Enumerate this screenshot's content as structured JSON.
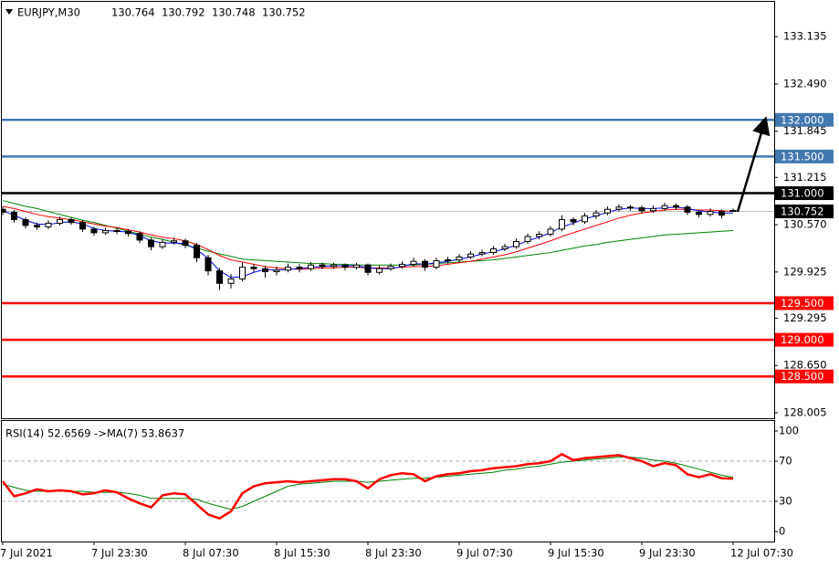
{
  "header": {
    "symbol": "EURJPY,M30",
    "ohlc": [
      130.764,
      130.792,
      130.748,
      130.752
    ]
  },
  "chart_data": [
    {
      "type": "candlestick",
      "categories": [
        "7 Jul 2021",
        null,
        null,
        null,
        null,
        null,
        null,
        null,
        "7 Jul 23:30",
        null,
        null,
        null,
        null,
        null,
        null,
        null,
        "8 Jul 07:30",
        null,
        null,
        null,
        null,
        null,
        null,
        null,
        "8 Jul 15:30",
        null,
        null,
        null,
        null,
        null,
        null,
        null,
        "8 Jul 23:30",
        null,
        null,
        null,
        null,
        null,
        null,
        null,
        "9 Jul 07:30",
        null,
        null,
        null,
        null,
        null,
        null,
        null,
        "9 Jul 15:30",
        null,
        null,
        null,
        null,
        null,
        null,
        null,
        "9 Jul 23:30",
        null,
        null,
        null,
        null,
        null,
        null,
        null,
        "12 Jul 07:30"
      ],
      "ohlc": [
        [
          130.78,
          130.82,
          130.7,
          130.74
        ],
        [
          130.74,
          130.77,
          130.6,
          130.64
        ],
        [
          130.64,
          130.67,
          130.52,
          130.56
        ],
        [
          130.56,
          130.6,
          130.5,
          130.54
        ],
        [
          130.54,
          130.63,
          130.51,
          130.59
        ],
        [
          130.59,
          130.68,
          130.56,
          130.64
        ],
        [
          130.64,
          130.67,
          130.57,
          130.6
        ],
        [
          130.6,
          130.63,
          130.47,
          130.51
        ],
        [
          130.51,
          130.54,
          130.42,
          130.46
        ],
        [
          130.46,
          130.53,
          130.43,
          130.49
        ],
        [
          130.49,
          130.53,
          130.44,
          130.48
        ],
        [
          130.48,
          130.51,
          130.41,
          130.45
        ],
        [
          130.45,
          130.48,
          130.32,
          130.36
        ],
        [
          130.36,
          130.39,
          130.22,
          130.27
        ],
        [
          130.27,
          130.37,
          130.24,
          130.33
        ],
        [
          130.33,
          130.39,
          130.3,
          130.35
        ],
        [
          130.35,
          130.38,
          130.25,
          130.29
        ],
        [
          130.29,
          130.32,
          130.06,
          130.12
        ],
        [
          130.12,
          130.16,
          129.88,
          129.94
        ],
        [
          129.94,
          129.98,
          129.68,
          129.77
        ],
        [
          129.77,
          129.9,
          129.7,
          129.83
        ],
        [
          129.83,
          130.05,
          129.8,
          129.99
        ],
        [
          129.99,
          130.03,
          129.92,
          129.97
        ],
        [
          129.97,
          130.01,
          129.85,
          129.93
        ],
        [
          129.93,
          130.0,
          129.88,
          129.95
        ],
        [
          129.95,
          130.04,
          129.92,
          129.99
        ],
        [
          129.99,
          130.03,
          129.92,
          129.97
        ],
        [
          129.97,
          130.06,
          129.94,
          130.02
        ],
        [
          130.02,
          130.05,
          129.96,
          130.0
        ],
        [
          130.0,
          130.05,
          129.97,
          130.02
        ],
        [
          130.02,
          130.04,
          129.95,
          129.99
        ],
        [
          129.99,
          130.05,
          129.96,
          130.02
        ],
        [
          130.02,
          130.04,
          129.88,
          129.92
        ],
        [
          129.92,
          130.01,
          129.89,
          129.97
        ],
        [
          129.97,
          130.04,
          129.94,
          130.0
        ],
        [
          130.0,
          130.07,
          129.97,
          130.03
        ],
        [
          130.03,
          130.12,
          130.0,
          130.07
        ],
        [
          130.07,
          130.1,
          129.94,
          129.99
        ],
        [
          129.99,
          130.12,
          129.96,
          130.08
        ],
        [
          130.08,
          130.13,
          130.04,
          130.09
        ],
        [
          130.09,
          130.17,
          130.06,
          130.13
        ],
        [
          130.13,
          130.21,
          130.1,
          130.17
        ],
        [
          130.17,
          130.23,
          130.14,
          130.19
        ],
        [
          130.19,
          130.28,
          130.16,
          130.24
        ],
        [
          130.24,
          130.31,
          130.21,
          130.27
        ],
        [
          130.27,
          130.38,
          130.24,
          130.34
        ],
        [
          130.34,
          130.45,
          130.31,
          130.41
        ],
        [
          130.41,
          130.48,
          130.37,
          130.44
        ],
        [
          130.44,
          130.55,
          130.41,
          130.51
        ],
        [
          130.51,
          130.7,
          130.48,
          130.64
        ],
        [
          130.64,
          130.67,
          130.56,
          130.61
        ],
        [
          130.61,
          130.73,
          130.58,
          130.69
        ],
        [
          130.69,
          130.77,
          130.65,
          130.73
        ],
        [
          130.73,
          130.82,
          130.7,
          130.78
        ],
        [
          130.78,
          130.85,
          130.75,
          130.81
        ],
        [
          130.81,
          130.84,
          130.76,
          130.8
        ],
        [
          130.8,
          130.83,
          130.72,
          130.76
        ],
        [
          130.76,
          130.83,
          130.73,
          130.79
        ],
        [
          130.79,
          130.87,
          130.76,
          130.83
        ],
        [
          130.83,
          130.86,
          130.77,
          130.81
        ],
        [
          130.81,
          130.84,
          130.7,
          130.74
        ],
        [
          130.74,
          130.77,
          130.67,
          130.71
        ],
        [
          130.71,
          130.79,
          130.68,
          130.75
        ],
        [
          130.75,
          130.78,
          130.66,
          130.7
        ],
        [
          130.764,
          130.792,
          130.748,
          130.752
        ]
      ],
      "up_color": "#ffffff",
      "down_color": "#000000",
      "lines": [
        {
          "color": "#008000",
          "values": [
            130.9,
            130.86,
            130.82,
            130.79,
            130.75,
            130.71,
            130.67,
            130.63,
            130.6,
            130.56,
            130.52,
            130.48,
            130.44,
            130.4,
            130.37,
            130.33,
            130.29,
            130.25,
            130.21,
            130.17,
            130.14,
            130.1,
            130.09,
            130.08,
            130.07,
            130.06,
            130.05,
            130.04,
            130.04,
            130.03,
            130.03,
            130.02,
            130.02,
            130.02,
            130.02,
            130.02,
            130.02,
            130.03,
            130.04,
            130.05,
            130.06,
            130.07,
            130.08,
            130.09,
            130.11,
            130.13,
            130.15,
            130.17,
            130.19,
            130.22,
            130.25,
            130.28,
            130.3,
            130.33,
            130.35,
            130.37,
            130.39,
            130.41,
            130.43,
            130.44,
            130.45,
            130.46,
            130.47,
            130.48,
            130.49
          ]
        },
        {
          "color": "#ff0000",
          "values": [
            130.82,
            130.79,
            130.75,
            130.71,
            130.68,
            130.66,
            130.64,
            130.61,
            130.58,
            130.55,
            130.53,
            130.5,
            130.47,
            130.43,
            130.4,
            130.38,
            130.35,
            130.3,
            130.23,
            130.15,
            130.09,
            130.06,
            130.03,
            130.0,
            129.98,
            129.97,
            129.96,
            129.97,
            129.98,
            129.98,
            129.99,
            129.99,
            129.98,
            129.98,
            129.98,
            129.99,
            130.0,
            130.0,
            130.01,
            130.03,
            130.05,
            130.07,
            130.1,
            130.13,
            130.16,
            130.2,
            130.25,
            130.3,
            130.35,
            130.41,
            130.46,
            130.51,
            130.56,
            130.61,
            130.66,
            130.7,
            130.73,
            130.75,
            130.77,
            130.78,
            130.78,
            130.77,
            130.77,
            130.76,
            130.75
          ]
        },
        {
          "color": "#0000ff",
          "values": [
            130.76,
            130.7,
            130.63,
            130.58,
            130.57,
            130.6,
            130.61,
            130.58,
            130.52,
            130.49,
            130.48,
            130.47,
            130.42,
            130.35,
            130.32,
            130.32,
            130.31,
            130.23,
            130.11,
            129.94,
            129.85,
            129.86,
            129.92,
            129.96,
            129.95,
            129.96,
            129.97,
            129.99,
            130.0,
            130.01,
            130.01,
            130.01,
            129.98,
            129.97,
            129.97,
            130.0,
            130.04,
            130.03,
            130.05,
            130.07,
            130.1,
            130.13,
            130.17,
            130.2,
            130.24,
            130.29,
            130.35,
            130.4,
            130.46,
            130.54,
            130.59,
            130.65,
            130.69,
            130.74,
            130.78,
            130.8,
            130.79,
            130.79,
            130.8,
            130.81,
            130.79,
            130.76,
            130.74,
            130.73,
            130.73
          ]
        }
      ],
      "ylim": [
        127.93,
        133.61
      ],
      "yticks": [
        133.135,
        {
          "value": 132.49,
          "label": "132.490"
        },
        131.845,
        131.215,
        {
          "value": 130.57,
          "label": "130.570"
        },
        129.925,
        129.295,
        {
          "value": 128.65,
          "label": "128.650"
        },
        128.005
      ],
      "levels": [
        {
          "value": 132,
          "label": "132.000",
          "color": "#4178b0"
        },
        {
          "value": 131.5,
          "label": "131.500",
          "color": "#4178b0"
        },
        {
          "value": 131,
          "label": "131.000",
          "color": "#000000"
        },
        {
          "value": 129.5,
          "label": "129.500",
          "color": "#ff0000"
        },
        {
          "value": 129,
          "label": "129.000",
          "color": "#ff0000"
        },
        {
          "value": 128.5,
          "label": "128.500",
          "color": "#ff0000"
        }
      ],
      "last_price": 130.752
    },
    {
      "type": "line",
      "title": "RSI(14) 52.6569  ->MA(7) 53.8637",
      "series": [
        {
          "color": "#ff0000",
          "values": [
            50,
            35,
            38,
            42,
            40,
            41,
            40,
            37,
            38,
            41,
            39,
            33,
            28,
            24,
            36,
            38,
            37,
            27,
            17,
            13,
            20,
            38,
            45,
            48,
            49,
            50,
            49,
            50,
            51,
            52,
            52,
            50,
            43,
            52,
            56,
            58,
            57,
            50,
            55,
            57,
            58,
            60,
            61,
            63,
            64,
            65,
            67,
            68,
            70,
            77,
            71,
            73,
            74,
            75,
            76,
            73,
            70,
            65,
            68,
            66,
            57,
            54,
            57,
            53,
            52.6569
          ]
        },
        {
          "color": "#008000",
          "values": [
            47,
            44,
            41,
            40,
            40,
            40,
            40,
            40,
            39,
            39,
            39,
            38,
            36,
            33,
            33,
            33,
            33,
            32,
            28,
            25,
            22,
            25,
            30,
            35,
            40,
            45,
            47,
            48,
            49,
            50,
            50,
            50,
            49,
            50,
            51,
            52,
            53,
            53,
            54,
            55,
            56,
            57,
            58,
            59,
            61,
            62,
            64,
            65,
            67,
            69,
            70,
            71,
            72,
            73,
            74,
            74,
            73,
            71,
            70,
            68,
            65,
            62,
            59,
            56,
            53.8637
          ]
        }
      ],
      "ylim": [
        -10,
        110
      ],
      "yticks": [
        100,
        70,
        30,
        0
      ],
      "levels": [
        70,
        30
      ]
    }
  ]
}
